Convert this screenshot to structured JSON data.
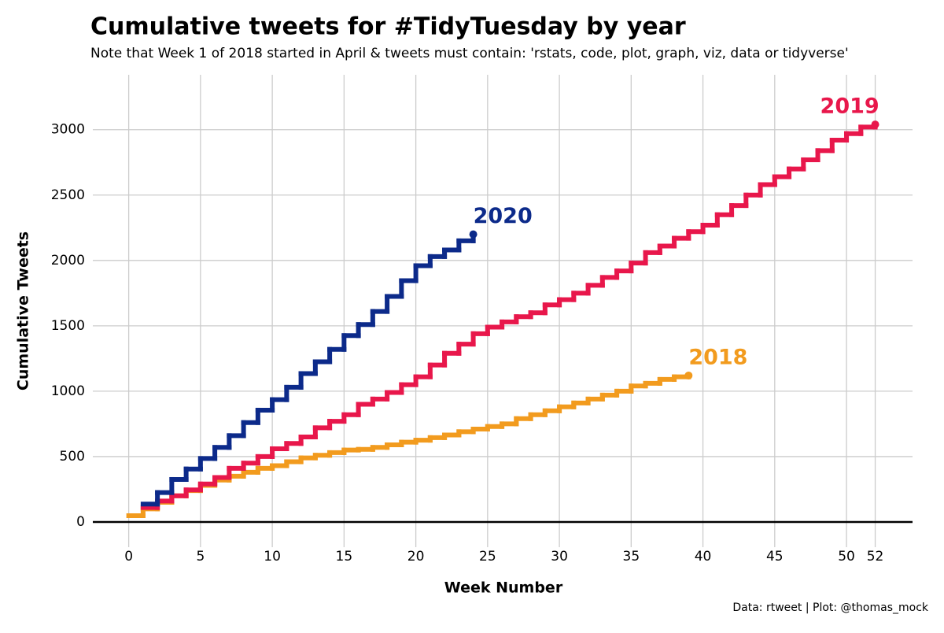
{
  "chart_data": {
    "type": "step",
    "title": "Cumulative tweets for #TidyTuesday by year",
    "subtitle": "Note that Week 1 of 2018 started in April & tweets must contain: 'rstats, code, plot, graph, viz, data or tidyverse'",
    "x_label": "Week Number",
    "y_label": "Cumulative Tweets",
    "caption": "Data: rtweet | Plot: @thomas_mock",
    "x": [
      0,
      1,
      2,
      3,
      4,
      5,
      6,
      7,
      8,
      9,
      10,
      11,
      12,
      13,
      14,
      15,
      16,
      17,
      18,
      19,
      20,
      21,
      22,
      23,
      24,
      25,
      26,
      27,
      28,
      29,
      30,
      31,
      32,
      33,
      34,
      35,
      36,
      37,
      38,
      39,
      40,
      41,
      42,
      43,
      44,
      45,
      46,
      47,
      48,
      49,
      50,
      51,
      52
    ],
    "series": [
      {
        "name": "2018",
        "color": "#f29b1e",
        "values": [
          48,
          100,
          150,
          200,
          240,
          280,
          320,
          350,
          380,
          410,
          430,
          460,
          490,
          510,
          530,
          550,
          555,
          570,
          590,
          610,
          625,
          645,
          665,
          690,
          710,
          730,
          750,
          790,
          820,
          850,
          880,
          910,
          940,
          970,
          1000,
          1040,
          1060,
          1090,
          1110,
          1120,
          null,
          null,
          null,
          null,
          null,
          null,
          null,
          null,
          null,
          null,
          null,
          null,
          null
        ]
      },
      {
        "name": "2019",
        "color": "#e8174b",
        "values": [
          null,
          110,
          160,
          200,
          245,
          290,
          340,
          410,
          450,
          500,
          560,
          600,
          650,
          720,
          770,
          820,
          900,
          940,
          990,
          1050,
          1110,
          1200,
          1290,
          1360,
          1440,
          1490,
          1530,
          1570,
          1600,
          1660,
          1700,
          1750,
          1810,
          1870,
          1920,
          1980,
          2060,
          2110,
          2170,
          2220,
          2270,
          2350,
          2420,
          2500,
          2580,
          2640,
          2700,
          2770,
          2840,
          2920,
          2970,
          3020,
          3040
        ]
      },
      {
        "name": "2020",
        "color": "#0c2a8a",
        "values": [
          null,
          137,
          225,
          325,
          405,
          485,
          570,
          660,
          760,
          855,
          935,
          1030,
          1135,
          1225,
          1320,
          1425,
          1510,
          1610,
          1725,
          1845,
          1960,
          2030,
          2080,
          2150,
          2200,
          null,
          null,
          null,
          null,
          null,
          null,
          null,
          null,
          null,
          null,
          null,
          null,
          null,
          null,
          null,
          null,
          null,
          null,
          null,
          null,
          null,
          null,
          null,
          null,
          null,
          null,
          null,
          null
        ]
      }
    ],
    "xlim": [
      -2.5,
      54.6
    ],
    "ylim": [
      -193,
      3420
    ],
    "xticks": [
      0,
      5,
      10,
      15,
      20,
      25,
      30,
      35,
      40,
      45,
      50,
      52
    ],
    "yticks": [
      0,
      500,
      1000,
      1500,
      2000,
      2500,
      3000
    ],
    "grid": true
  }
}
